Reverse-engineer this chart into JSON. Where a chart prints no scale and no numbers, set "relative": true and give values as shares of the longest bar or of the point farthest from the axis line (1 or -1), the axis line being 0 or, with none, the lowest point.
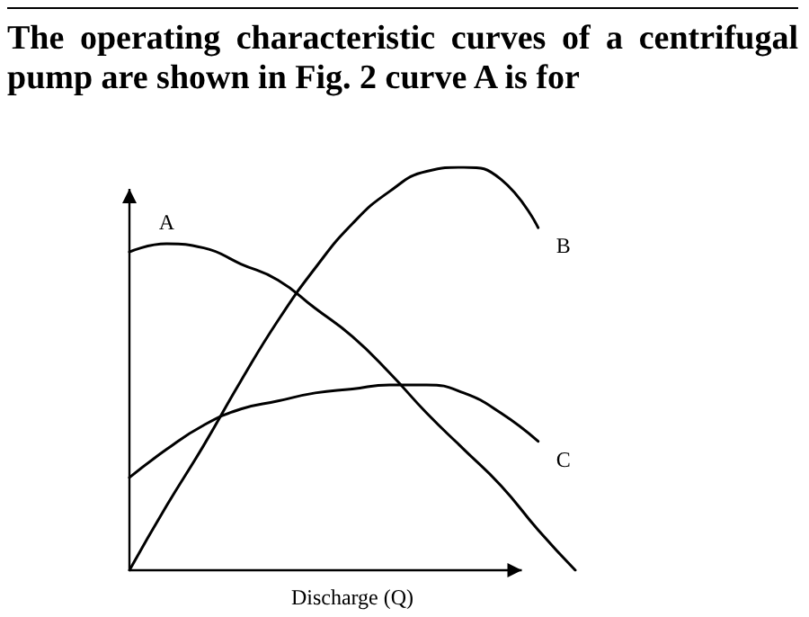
{
  "chart_data": {
    "type": "line",
    "title": "The operating characteristic curves of a centrifugal pump are shown in Fig. 2 curve A is for",
    "xlabel": "Discharge (Q)",
    "relative": true,
    "categories": [
      null,
      null,
      null,
      null,
      null,
      null,
      null,
      null,
      null,
      null,
      null,
      null,
      null
    ],
    "series": [
      {
        "name": "A",
        "color": "#000000",
        "values": [
          0.79,
          0.81,
          0.8,
          0.76,
          0.72,
          0.65,
          0.58,
          0.49,
          0.39,
          0.3,
          0.21,
          0.1,
          0
        ]
      },
      {
        "name": "B",
        "color": "#000000",
        "values": [
          0,
          0.16,
          0.31,
          0.47,
          0.62,
          0.75,
          0.86,
          0.94,
          0.99,
          1,
          0.97,
          0.85,
          null
        ]
      },
      {
        "name": "C",
        "color": "#000000",
        "values": [
          0.23,
          0.3,
          0.36,
          0.4,
          0.42,
          0.44,
          0.45,
          0.46,
          0.46,
          0.44,
          0.39,
          0.32,
          null
        ]
      }
    ],
    "grid": false,
    "legend": false,
    "marker": "none",
    "line_style": "solid"
  }
}
